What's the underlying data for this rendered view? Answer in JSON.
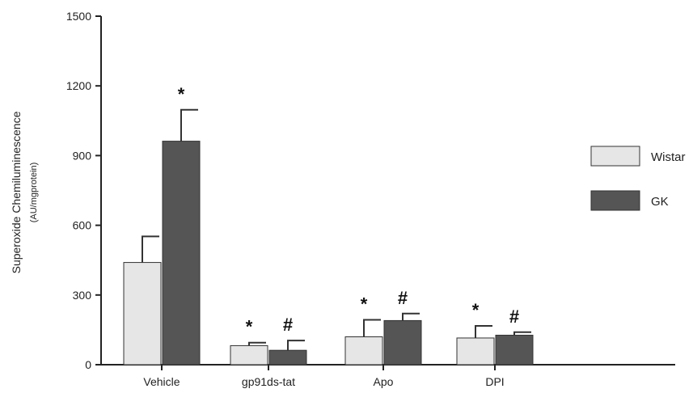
{
  "chart_data": {
    "type": "bar",
    "categories": [
      "Vehicle",
      "gp91ds-tat",
      "Apo",
      "DPI"
    ],
    "series": [
      {
        "name": "Wistar",
        "color": "#e6e6e6",
        "values": [
          440,
          82,
          120,
          115
        ],
        "errors": [
          112,
          13,
          73,
          52
        ],
        "marks": [
          "",
          "*",
          "*",
          "*"
        ]
      },
      {
        "name": "GK",
        "color": "#555555",
        "values": [
          962,
          62,
          190,
          127
        ],
        "errors": [
          135,
          42,
          30,
          13
        ],
        "marks": [
          "*",
          "#",
          "#",
          "#"
        ]
      }
    ],
    "ylabel": "Superoxide Chemiluminescence",
    "ylabel_sub": "(AU/mgprotein)",
    "yticks": [
      "0",
      "300",
      "600",
      "900",
      "1200",
      "1500"
    ],
    "ylim": [
      0,
      1500
    ],
    "grid": false,
    "legend_placement": "right"
  }
}
